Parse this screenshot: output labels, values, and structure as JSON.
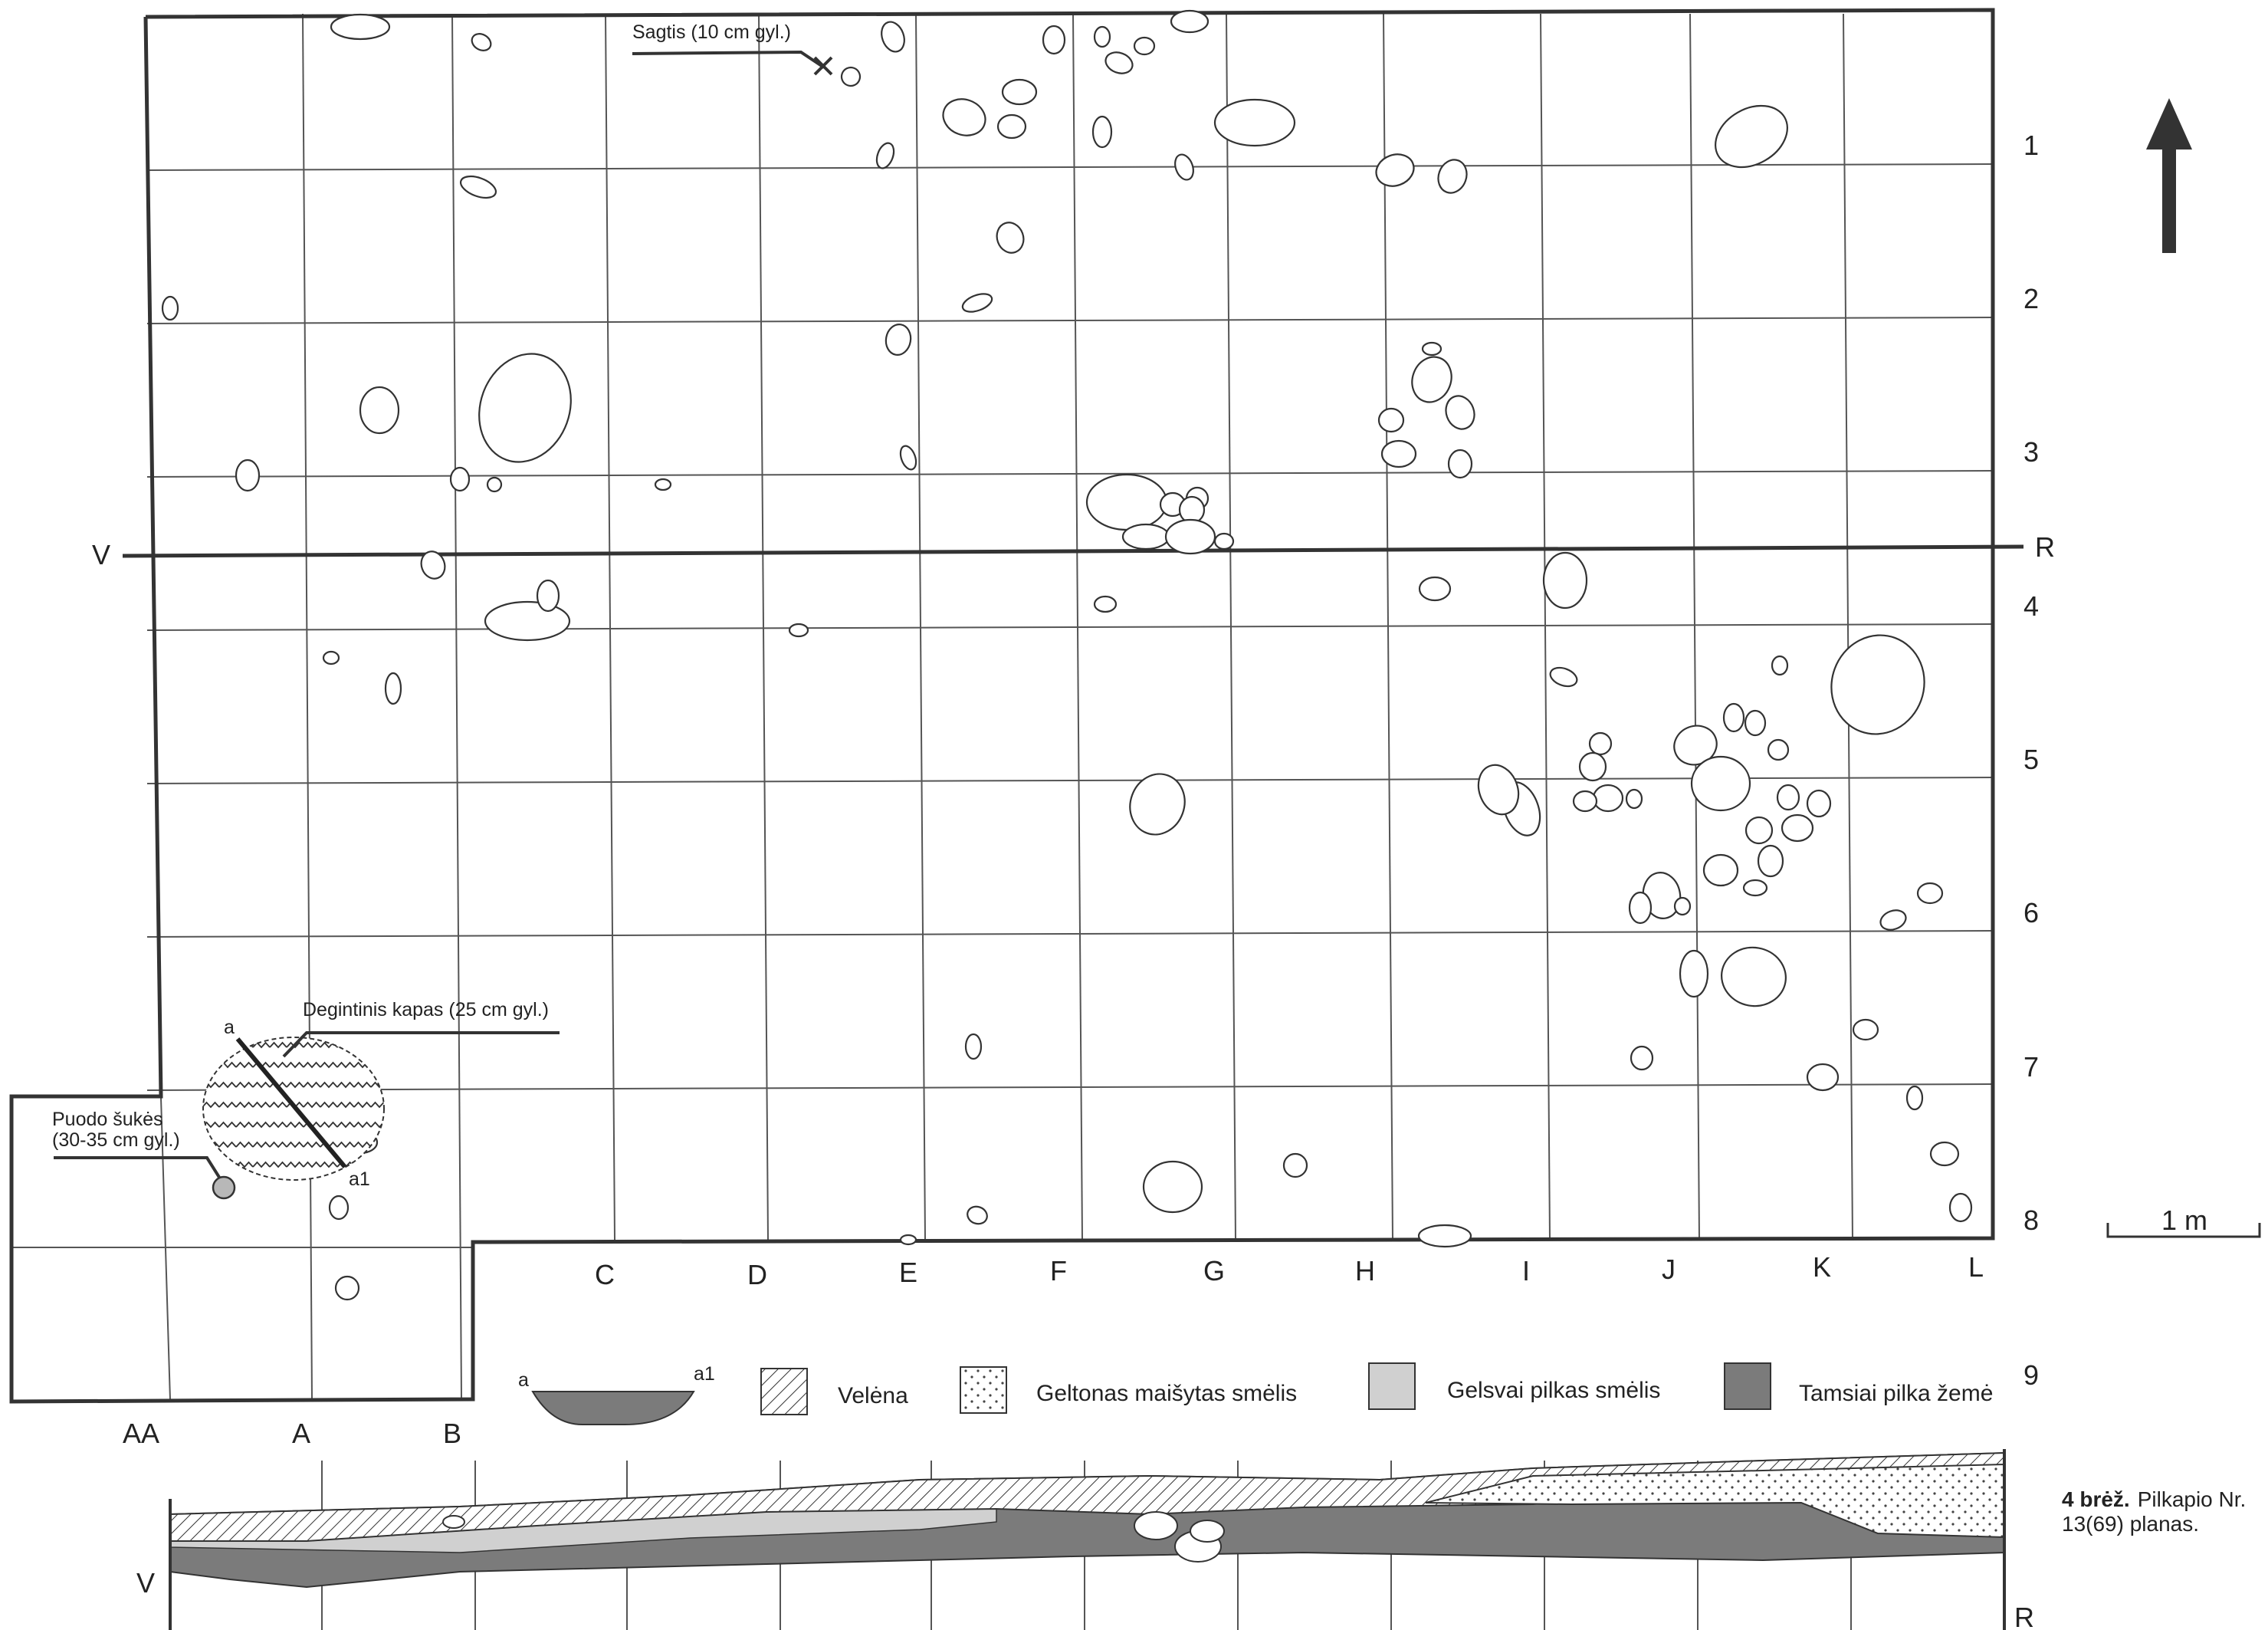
{
  "grid": {
    "columns": [
      "AA",
      "A",
      "B",
      "C",
      "D",
      "E",
      "F",
      "G",
      "H",
      "I",
      "J",
      "K",
      "L"
    ],
    "rows": [
      "1",
      "2",
      "3",
      "4",
      "5",
      "6",
      "7",
      "8",
      "9"
    ]
  },
  "section_line": {
    "start": "V",
    "end": "R"
  },
  "annotations": {
    "sagtis": "Sagtis (10 cm gyl.)",
    "kapas": "Degintinis kapas (25 cm gyl.)",
    "puodo_line1": "Puodo šukės",
    "puodo_line2": "(30-35 cm gyl.)",
    "kapas_a": "a",
    "kapas_a1": "a1"
  },
  "scale": "1 m",
  "north_arrow": "north-arrow-icon",
  "legend": {
    "profile_a": "a",
    "profile_a1": "a1",
    "items": [
      {
        "label": "Velėna",
        "pattern": "hatch"
      },
      {
        "label": "Geltonas maišytas smėlis",
        "pattern": "dots"
      },
      {
        "label": "Gelsvai pilkas smėlis",
        "color": "#d0d0d0"
      },
      {
        "label": "Tamsiai pilka žemė",
        "color": "#7b7b7b"
      }
    ]
  },
  "profile": {
    "start": "V",
    "end": "R"
  },
  "caption": {
    "bold": "4 brėž.",
    "line1": "Pilkapio Nr.",
    "line2": "13(69) planas."
  }
}
